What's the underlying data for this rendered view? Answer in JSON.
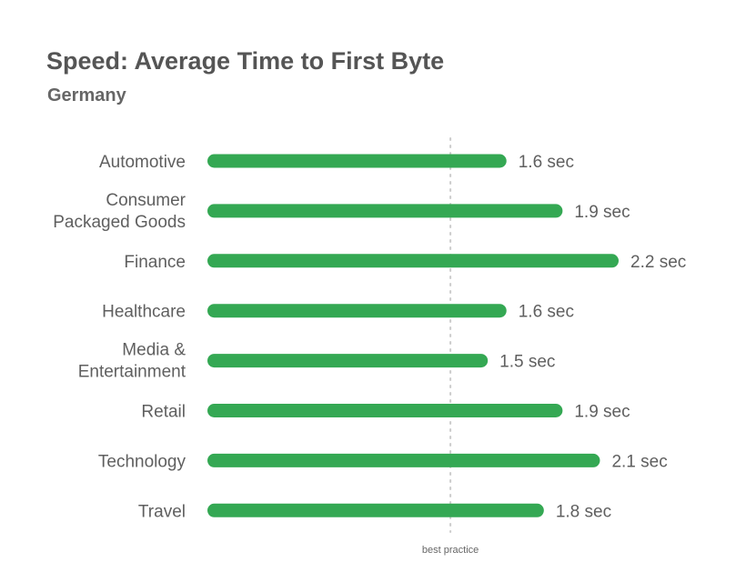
{
  "chart_data": {
    "type": "bar",
    "orientation": "horizontal",
    "title": "Speed: Average Time to First Byte",
    "subtitle": "Germany",
    "categories": [
      [
        "Automotive"
      ],
      [
        "Consumer",
        "Packaged Goods"
      ],
      [
        "Finance"
      ],
      [
        "Healthcare"
      ],
      [
        "Media &",
        "Entertainment"
      ],
      [
        "Retail"
      ],
      [
        "Technology"
      ],
      [
        "Travel"
      ]
    ],
    "values": [
      1.6,
      1.9,
      2.2,
      1.6,
      1.5,
      1.9,
      2.1,
      1.8
    ],
    "value_labels": [
      "1.6 sec",
      "1.9 sec",
      "2.2 sec",
      "1.6 sec",
      "1.5 sec",
      "1.9 sec",
      "2.1 sec",
      "1.8 sec"
    ],
    "reference_line": {
      "value": 1.3,
      "label": "best practice"
    },
    "xlim": [
      0.0,
      2.2
    ],
    "grid": false,
    "bar_color": "#34a853",
    "ref_line_color": "#cccccc"
  }
}
